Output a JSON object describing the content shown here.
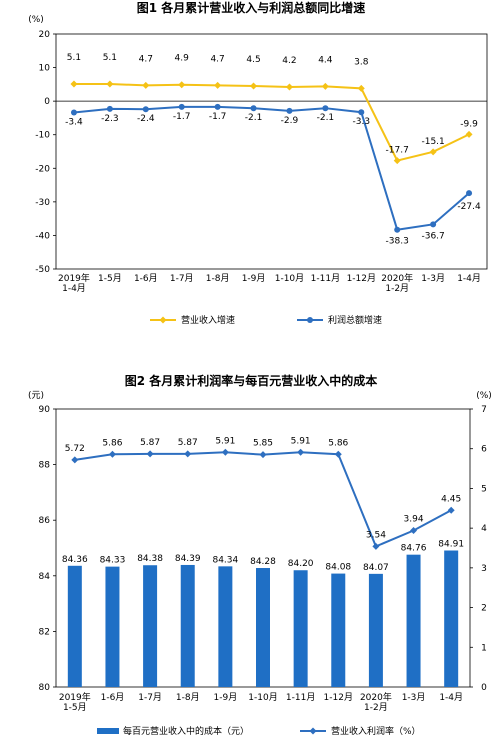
{
  "charts": [
    {
      "type": "line",
      "title": "图1  各月累计营业收入与利润总额同比增速",
      "yunit": "(%)",
      "ylim": [
        -50,
        20
      ],
      "yticks": [
        20,
        10,
        0,
        -10,
        -20,
        -30,
        -40,
        -50
      ],
      "yticklabels": [
        "20",
        "10",
        "0",
        "-10",
        "-20",
        "-30",
        "-40",
        "-50"
      ],
      "categories": [
        [
          "2019年",
          "1-4月"
        ],
        [
          "1-5月"
        ],
        [
          "1-6月"
        ],
        [
          "1-7月"
        ],
        [
          "1-8月"
        ],
        [
          "1-9月"
        ],
        [
          "1-10月"
        ],
        [
          "1-11月"
        ],
        [
          "1-12月"
        ],
        [
          "2020年",
          "1-2月"
        ],
        [
          "1-3月"
        ],
        [
          "1-4月"
        ]
      ],
      "series": [
        {
          "name": "营业收入增速",
          "color": "#F5C216",
          "marker": "diamond",
          "values": [
            5.1,
            5.1,
            4.7,
            4.9,
            4.7,
            4.5,
            4.2,
            4.4,
            3.8,
            -17.7,
            -15.1,
            -9.9
          ],
          "labels": [
            "5.1",
            "5.1",
            "4.7",
            "4.9",
            "4.7",
            "4.5",
            "4.2",
            "4.4",
            "3.8",
            "-17.7",
            "-15.1",
            "-9.9"
          ]
        },
        {
          "name": "利润总额增速",
          "color": "#2E6FC0",
          "marker": "circle",
          "values": [
            -3.4,
            -2.3,
            -2.4,
            -1.7,
            -1.7,
            -2.1,
            -2.9,
            -2.1,
            -3.3,
            -38.3,
            -36.7,
            -27.4
          ],
          "labels": [
            "-3.4",
            "-2.3",
            "-2.4",
            "-1.7",
            "-1.7",
            "-2.1",
            "-2.9",
            "-2.1",
            "-3.3",
            "-38.3",
            "-36.7",
            "-27.4"
          ]
        }
      ]
    },
    {
      "type": "bar+line",
      "title": "图2  各月累计利润率与每百元营业收入中的成本",
      "yunit_left": "(元)",
      "yunit_right": "(%)",
      "ylim_left": [
        80,
        90
      ],
      "yticks_left": [
        90,
        88,
        86,
        84,
        82,
        80
      ],
      "yticklabels_left": [
        "90",
        "88",
        "86",
        "84",
        "82",
        "80"
      ],
      "ylim_right": [
        0,
        7
      ],
      "yticks_right": [
        7,
        6,
        5,
        4,
        3,
        2,
        1,
        0
      ],
      "yticklabels_right": [
        "7",
        "6",
        "5",
        "4",
        "3",
        "2",
        "1",
        "0"
      ],
      "categories": [
        [
          "2019年",
          "1-5月"
        ],
        [
          "1-6月"
        ],
        [
          "1-7月"
        ],
        [
          "1-8月"
        ],
        [
          "1-9月"
        ],
        [
          "1-10月"
        ],
        [
          "1-11月"
        ],
        [
          "1-12月"
        ],
        [
          "2020年",
          "1-2月"
        ],
        [
          "1-3月"
        ],
        [
          "1-4月"
        ]
      ],
      "bars": {
        "name": "每百元营业收入中的成本（元）",
        "color": "#1F6FC5",
        "values": [
          84.36,
          84.33,
          84.38,
          84.39,
          84.34,
          84.28,
          84.2,
          84.08,
          84.07,
          84.76,
          84.91
        ],
        "labels": [
          "84.36",
          "84.33",
          "84.38",
          "84.39",
          "84.34",
          "84.28",
          "84.20",
          "84.08",
          "84.07",
          "84.76",
          "84.91"
        ]
      },
      "line": {
        "name": "营业收入利润率（%）",
        "color": "#2E6FC0",
        "marker": "diamond",
        "values": [
          5.72,
          5.86,
          5.87,
          5.87,
          5.91,
          5.85,
          5.91,
          5.86,
          3.54,
          3.94,
          4.45
        ],
        "labels": [
          "5.72",
          "5.86",
          "5.87",
          "5.87",
          "5.91",
          "5.85",
          "5.91",
          "5.86",
          "3.54",
          "3.94",
          "4.45"
        ]
      }
    }
  ]
}
